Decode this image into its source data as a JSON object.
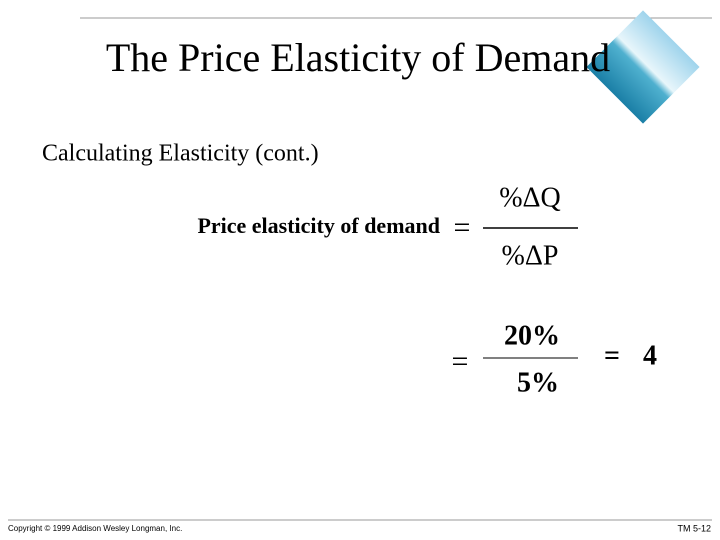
{
  "header": {
    "title": "The Price Elasticity of Demand",
    "subtitle": "Calculating Elasticity (cont.)"
  },
  "formula": {
    "label": "Price elasticity of demand",
    "equals": "=",
    "numerator": "%ΔQ",
    "denominator": "%ΔP"
  },
  "example": {
    "equals": "=",
    "numerator": "20%",
    "denominator": "5%",
    "result_equals": "=",
    "result": "4"
  },
  "footer": {
    "copyright": "Copyright © 1999 Addison Wesley Longman, Inc.",
    "slide_id": "TM 5-12"
  }
}
